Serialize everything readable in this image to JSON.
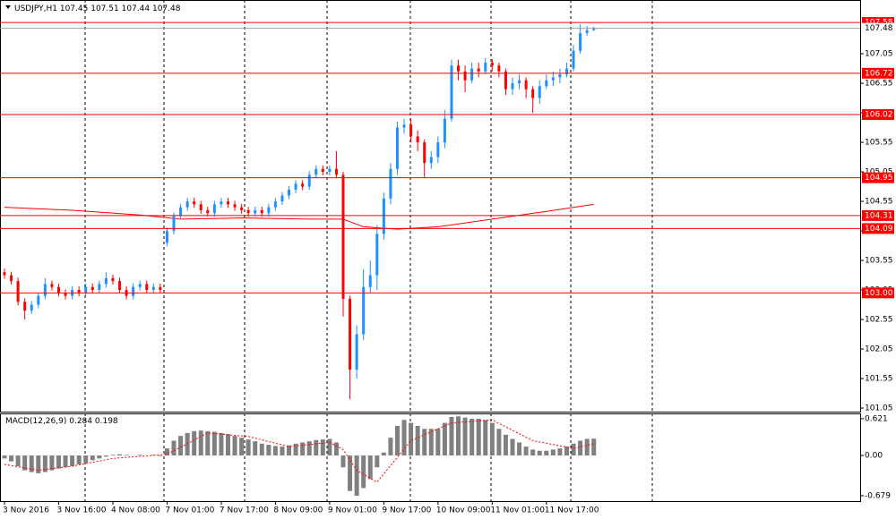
{
  "chart_data": [
    {
      "type": "candlestick",
      "title": "USDJPY,H1",
      "header_values": [
        107.45,
        107.51,
        107.44,
        107.48
      ],
      "categories": [
        "3 Nov 2016",
        null,
        null,
        null,
        null,
        null,
        null,
        null,
        "3 Nov 16:00",
        null,
        null,
        null,
        null,
        null,
        null,
        null,
        "4 Nov 08:00",
        null,
        null,
        null,
        null,
        null,
        null,
        null,
        "7 Nov 01:00",
        null,
        null,
        null,
        null,
        null,
        null,
        null,
        "7 Nov 17:00",
        null,
        null,
        null,
        null,
        null,
        null,
        null,
        "8 Nov 09:00",
        null,
        null,
        null,
        null,
        null,
        null,
        null,
        "9 Nov 01:00",
        null,
        null,
        null,
        null,
        null,
        null,
        null,
        "9 Nov 17:00",
        null,
        null,
        null,
        null,
        null,
        null,
        null,
        "10 Nov 09:00",
        null,
        null,
        null,
        null,
        null,
        null,
        null,
        "11 Nov 01:00",
        null,
        null,
        null,
        null,
        null,
        null,
        null,
        "11 Nov 17:00",
        null,
        null,
        null,
        null,
        null,
        null,
        null
      ],
      "open": [
        103.35,
        103.3,
        103.2,
        102.85,
        102.7,
        102.8,
        102.95,
        103.15,
        103.1,
        103.0,
        102.95,
        103.05,
        103.0,
        103.1,
        103.05,
        103.15,
        103.25,
        103.2,
        103.05,
        102.95,
        103.1,
        103.15,
        103.05,
        103.1,
        103.85,
        104.05,
        104.3,
        104.45,
        104.55,
        104.5,
        104.4,
        104.35,
        104.5,
        104.55,
        104.5,
        104.45,
        104.4,
        104.35,
        104.4,
        104.35,
        104.45,
        104.55,
        104.65,
        104.75,
        104.85,
        104.8,
        105.0,
        105.1,
        105.05,
        105.1,
        105.0,
        102.9,
        101.7,
        102.3,
        103.1,
        103.3,
        104.0,
        104.6,
        105.1,
        105.8,
        105.85,
        105.65,
        105.55,
        105.2,
        105.3,
        105.55,
        105.95,
        106.85,
        106.75,
        106.6,
        106.8,
        106.75,
        106.9,
        106.85,
        106.75,
        106.45,
        106.55,
        106.6,
        106.45,
        106.3,
        106.5,
        106.6,
        106.65,
        106.7,
        106.8,
        107.1,
        107.4,
        107.45
      ],
      "high": [
        103.41,
        103.36,
        103.26,
        102.91,
        102.86,
        103.01,
        103.25,
        103.21,
        103.16,
        103.06,
        103.11,
        103.11,
        103.16,
        103.16,
        103.21,
        103.35,
        103.31,
        103.26,
        103.11,
        103.16,
        103.21,
        103.21,
        103.16,
        103.16,
        104.11,
        104.36,
        104.51,
        104.61,
        104.61,
        104.56,
        104.46,
        104.56,
        104.61,
        104.61,
        104.56,
        104.51,
        104.46,
        104.46,
        104.46,
        104.51,
        104.61,
        104.71,
        104.81,
        104.91,
        104.91,
        105.06,
        105.16,
        105.16,
        105.16,
        105.4,
        105.05,
        102.95,
        102.45,
        103.4,
        103.55,
        104.15,
        104.7,
        105.2,
        105.9,
        105.95,
        105.95,
        105.75,
        105.6,
        105.4,
        105.65,
        106.1,
        106.95,
        106.95,
        106.85,
        106.9,
        106.9,
        106.98,
        106.96,
        106.9,
        106.8,
        106.65,
        106.7,
        106.65,
        106.5,
        106.6,
        106.7,
        106.75,
        106.8,
        106.9,
        107.2,
        107.55,
        107.52,
        107.51
      ],
      "low": [
        103.24,
        103.14,
        102.79,
        102.55,
        102.64,
        102.74,
        102.89,
        103.04,
        102.94,
        102.89,
        102.89,
        102.94,
        102.94,
        102.99,
        102.99,
        103.09,
        103.14,
        102.99,
        102.89,
        102.89,
        103.04,
        102.99,
        102.99,
        102.99,
        103.79,
        103.99,
        104.24,
        104.39,
        104.44,
        104.34,
        104.29,
        104.29,
        104.44,
        104.44,
        104.39,
        104.34,
        104.29,
        104.29,
        104.29,
        104.29,
        104.39,
        104.49,
        104.59,
        104.69,
        104.74,
        104.74,
        104.94,
        104.99,
        104.99,
        104.94,
        102.6,
        101.2,
        101.55,
        102.2,
        103.0,
        103.05,
        103.9,
        104.5,
        105.0,
        105.7,
        105.55,
        105.4,
        104.95,
        105.1,
        105.2,
        105.45,
        105.9,
        106.6,
        106.4,
        106.55,
        106.65,
        106.7,
        106.75,
        106.65,
        106.35,
        106.35,
        106.45,
        106.3,
        106.05,
        106.2,
        106.45,
        106.5,
        106.55,
        106.65,
        106.75,
        107.05,
        107.35,
        107.44
      ],
      "close": [
        103.3,
        103.2,
        102.85,
        102.7,
        102.8,
        102.95,
        103.15,
        103.1,
        103.0,
        102.95,
        103.05,
        103.0,
        103.1,
        103.05,
        103.15,
        103.25,
        103.2,
        103.05,
        102.95,
        103.1,
        103.15,
        103.05,
        103.1,
        103.05,
        104.05,
        104.3,
        104.45,
        104.55,
        104.5,
        104.4,
        104.35,
        104.5,
        104.55,
        104.5,
        104.45,
        104.4,
        104.35,
        104.4,
        104.35,
        104.45,
        104.55,
        104.65,
        104.75,
        104.85,
        104.8,
        105.0,
        105.1,
        105.05,
        105.1,
        105.0,
        102.9,
        101.7,
        102.3,
        103.1,
        103.3,
        104.0,
        104.6,
        105.1,
        105.8,
        105.85,
        105.65,
        105.55,
        105.2,
        105.3,
        105.55,
        105.95,
        106.85,
        106.75,
        106.6,
        106.8,
        106.75,
        106.9,
        106.85,
        106.75,
        106.45,
        106.55,
        106.6,
        106.45,
        106.3,
        106.5,
        106.6,
        106.65,
        106.7,
        106.8,
        107.1,
        107.4,
        107.45,
        107.48
      ],
      "up_color": "#1e90ff",
      "down_color": "#ff0000",
      "ylim": [
        100.99,
        107.96
      ],
      "yticks": [
        107.05,
        106.55,
        106.05,
        105.55,
        105.05,
        104.55,
        104.05,
        103.55,
        103.05,
        102.55,
        102.05,
        101.55,
        101.05
      ],
      "levels": [
        107.58,
        106.72,
        106.02,
        104.95,
        104.31,
        104.09,
        {
          "value": 103,
          "label": "103.00"
        }
      ],
      "level_color": "#ff0000",
      "bid": 107.48,
      "bid_color": "#a0a0a0",
      "ma": {
        "x": [
          0,
          10,
          20,
          26,
          35,
          45,
          50,
          53,
          58,
          64,
          72,
          80,
          87
        ],
        "values": [
          104.45,
          104.4,
          104.32,
          104.25,
          104.27,
          104.25,
          104.25,
          104.12,
          104.08,
          104.12,
          104.25,
          104.38,
          104.5
        ],
        "color": "#ff0000"
      }
    },
    {
      "type": "bar",
      "title": "MACD(12,26,9)",
      "header_values": [
        0.284,
        0.198
      ],
      "values": [
        -0.05,
        -0.1,
        -0.18,
        -0.25,
        -0.28,
        -0.3,
        -0.28,
        -0.25,
        -0.22,
        -0.2,
        -0.18,
        -0.15,
        -0.12,
        -0.08,
        -0.05,
        -0.02,
        0.01,
        0.02,
        0.01,
        0.0,
        0.01,
        0.0,
        0.01,
        -0.01,
        0.12,
        0.25,
        0.33,
        0.38,
        0.41,
        0.42,
        0.41,
        0.4,
        0.38,
        0.36,
        0.33,
        0.3,
        0.27,
        0.24,
        0.2,
        0.18,
        0.16,
        0.15,
        0.17,
        0.2,
        0.22,
        0.24,
        0.26,
        0.27,
        0.28,
        0.22,
        -0.2,
        -0.6,
        -0.68,
        -0.55,
        -0.4,
        -0.2,
        0.05,
        0.3,
        0.5,
        0.6,
        0.55,
        0.5,
        0.45,
        0.45,
        0.45,
        0.55,
        0.65,
        0.66,
        0.64,
        0.62,
        0.62,
        0.6,
        0.55,
        0.45,
        0.35,
        0.28,
        0.22,
        0.15,
        0.1,
        0.08,
        0.08,
        0.1,
        0.12,
        0.15,
        0.2,
        0.25,
        0.28,
        0.284
      ],
      "color": "#808080",
      "signal": {
        "x": [
          0,
          5,
          10,
          16,
          24,
          30,
          36,
          42,
          48,
          50,
          52,
          55,
          60,
          66,
          72,
          78,
          84,
          87
        ],
        "values": [
          -0.15,
          -0.25,
          -0.18,
          -0.05,
          0.02,
          0.38,
          0.32,
          0.15,
          0.22,
          0.1,
          -0.25,
          -0.45,
          0.25,
          0.55,
          0.6,
          0.25,
          0.12,
          0.198
        ],
        "color": "#ff0000"
      },
      "ylim": [
        -0.77,
        0.71
      ],
      "yticks": [
        0.621,
        {
          "value": 0,
          "label": "0.00"
        },
        -0.679
      ]
    }
  ]
}
